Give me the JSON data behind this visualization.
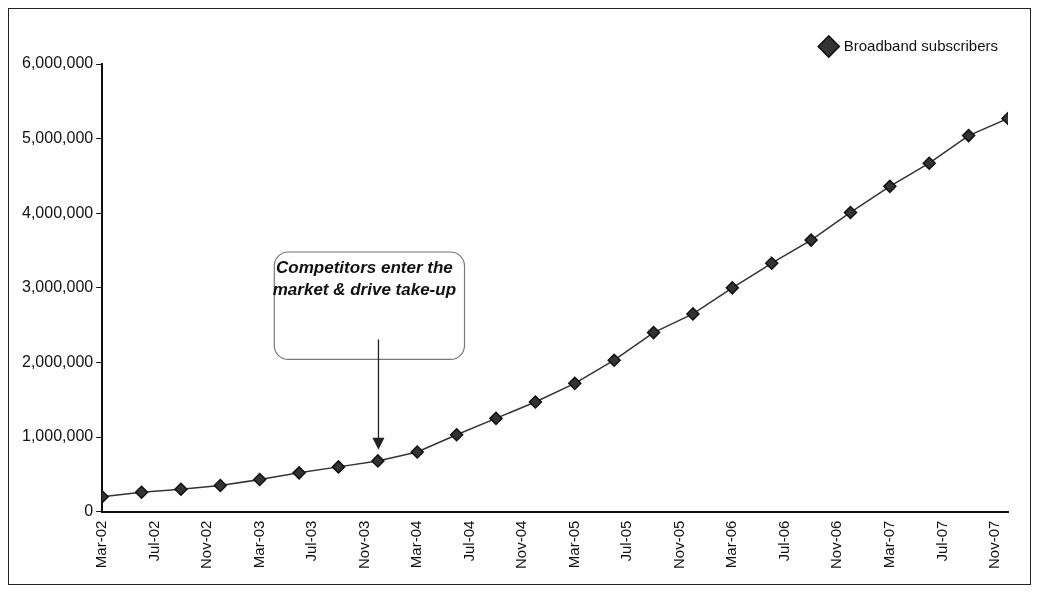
{
  "chart_data": {
    "type": "line",
    "x": [
      "2002-03",
      "2002-06",
      "2002-09",
      "2002-12",
      "2003-03",
      "2003-06",
      "2003-09",
      "2003-12",
      "2004-03",
      "2004-06",
      "2004-09",
      "2004-12",
      "2005-03",
      "2005-06",
      "2005-09",
      "2005-12",
      "2006-03",
      "2006-06",
      "2006-09",
      "2006-12",
      "2007-03",
      "2007-06",
      "2007-09",
      "2007-12"
    ],
    "series": [
      {
        "name": "Broadband subscribers",
        "color": "#333333",
        "values": [
          200000,
          260000,
          300000,
          350000,
          430000,
          520000,
          600000,
          680000,
          800000,
          1030000,
          1250000,
          1470000,
          1720000,
          2030000,
          2400000,
          2650000,
          3000000,
          3330000,
          3640000,
          4010000,
          4360000,
          4670000,
          5040000,
          5270000
        ]
      }
    ],
    "xlim": [
      "2002-03",
      "2007-12"
    ],
    "xticks": [
      {
        "value": "2002-03",
        "label": "Mar-02"
      },
      {
        "value": "2002-07",
        "label": "Jul-02"
      },
      {
        "value": "2002-11",
        "label": "Nov-02"
      },
      {
        "value": "2003-03",
        "label": "Mar-03"
      },
      {
        "value": "2003-07",
        "label": "Jul-03"
      },
      {
        "value": "2003-11",
        "label": "Nov-03"
      },
      {
        "value": "2004-03",
        "label": "Mar-04"
      },
      {
        "value": "2004-07",
        "label": "Jul-04"
      },
      {
        "value": "2004-11",
        "label": "Nov-04"
      },
      {
        "value": "2005-03",
        "label": "Mar-05"
      },
      {
        "value": "2005-07",
        "label": "Jul-05"
      },
      {
        "value": "2005-11",
        "label": "Nov-05"
      },
      {
        "value": "2006-03",
        "label": "Mar-06"
      },
      {
        "value": "2006-07",
        "label": "Jul-06"
      },
      {
        "value": "2006-11",
        "label": "Nov-06"
      },
      {
        "value": "2007-03",
        "label": "Mar-07"
      },
      {
        "value": "2007-07",
        "label": "Jul-07"
      },
      {
        "value": "2007-11",
        "label": "Nov-07"
      }
    ],
    "ylim": [
      0,
      6000000
    ],
    "yticks": [
      0,
      {
        "value": 1000000,
        "label": "1,000,000"
      },
      {
        "value": 2000000,
        "label": "2,000,000"
      },
      {
        "value": 3000000,
        "label": "3,000,000"
      },
      {
        "value": 4000000,
        "label": "4,000,000"
      },
      {
        "value": 5000000,
        "label": "5,000,000"
      },
      {
        "value": 6000000,
        "label": "6,000,000"
      }
    ],
    "annotations": [
      "Competitors enter the market & drive take-up"
    ],
    "grid": false,
    "legend": "top right",
    "marker": "diamond",
    "line_style": "solid"
  }
}
